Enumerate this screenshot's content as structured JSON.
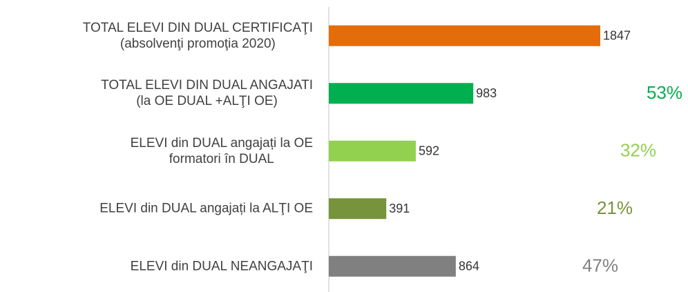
{
  "chart_data": {
    "type": "hbar",
    "categories": [
      "TOTAL ELEVI DIN DUAL CERTIFICAŢI\n(absolvenţi promoţia 2020)",
      "TOTAL ELEVI DIN DUAL ANGAJATI\n(la OE DUAL +ALŢI OE)",
      "ELEVI din DUAL angajați la OE\nformatori în DUAL",
      "ELEVI din DUAL angajați la ALŢI OE",
      "ELEVI din DUAL NEANGAJAŢI"
    ],
    "values": [
      1847,
      983,
      592,
      391,
      864
    ],
    "colors": [
      "#e46c0a",
      "#00b050",
      "#92d050",
      "#77933c",
      "#808080"
    ],
    "shares": [
      null,
      53,
      32,
      21,
      47
    ],
    "share_labels": [
      null,
      "53%",
      "32%",
      "21%",
      "47%"
    ],
    "xlim": [
      0,
      1847
    ]
  }
}
